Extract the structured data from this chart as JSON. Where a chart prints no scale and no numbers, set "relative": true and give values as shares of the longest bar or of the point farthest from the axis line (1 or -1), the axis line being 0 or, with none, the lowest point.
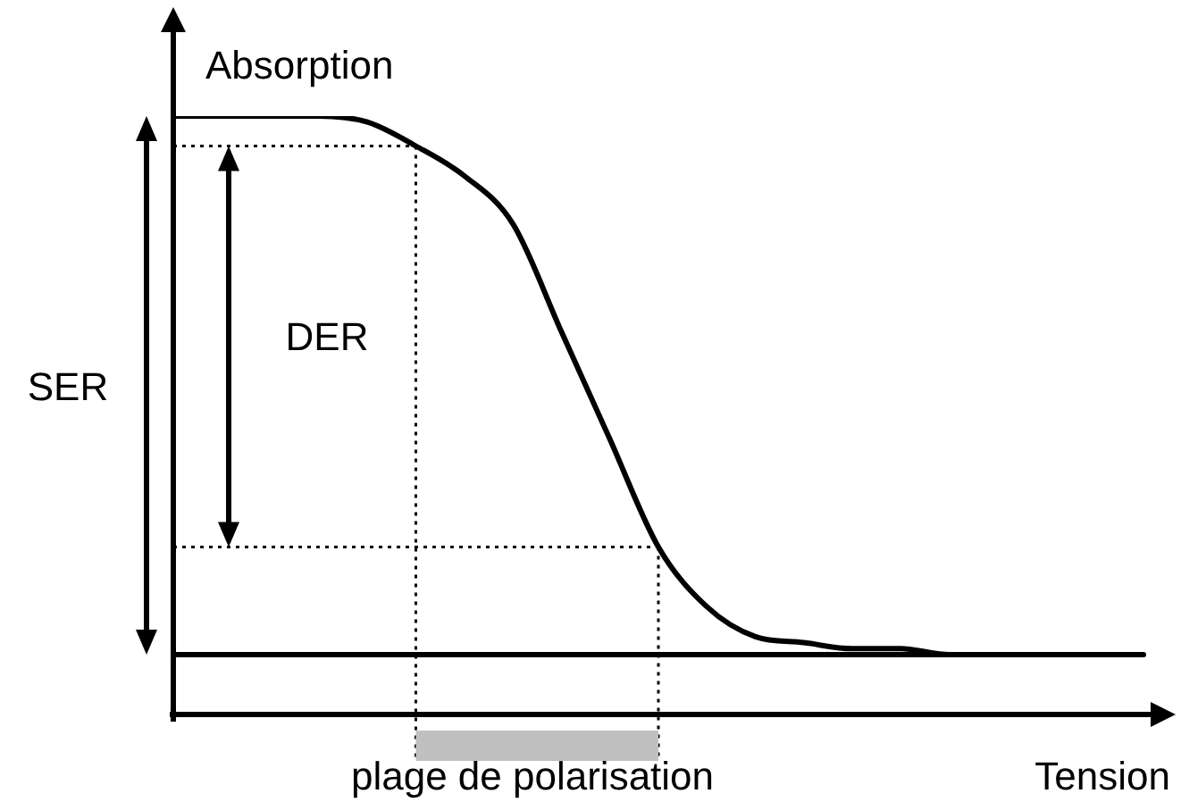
{
  "chart_data": {
    "type": "line",
    "relative": true,
    "xlabel": "Tension",
    "ylabel": "Absorption",
    "categories": [
      null,
      null,
      null,
      null,
      null,
      null,
      null,
      null,
      null,
      null,
      null,
      null,
      null,
      null,
      null,
      null,
      null,
      null,
      null,
      null,
      null
    ],
    "series": [
      {
        "color": "#000000",
        "values": [
          1,
          1,
          1,
          1,
          0.99,
          0.95,
          0.9,
          0.82,
          0.64,
          0.46,
          0.28,
          0.18,
          0.13,
          0.12,
          0.11,
          0.11,
          0.1,
          0.1,
          0.1,
          0.1,
          0.1
        ]
      }
    ],
    "ref_lines": [
      {
        "axis": "y",
        "value": 0.1,
        "color": "#000000",
        "line_style": "solid"
      },
      {
        "axis": "y",
        "value": 0.95,
        "color": "#000000",
        "line_style": "dotted"
      },
      {
        "axis": "y",
        "value": 0.28,
        "color": "#000000",
        "line_style": "dotted"
      }
    ],
    "annotations": [
      "SER",
      "DER",
      "plage de polarisation"
    ],
    "grid": false,
    "legend": false,
    "marker": "none",
    "line_style": "solid",
    "tick_labels": false
  }
}
